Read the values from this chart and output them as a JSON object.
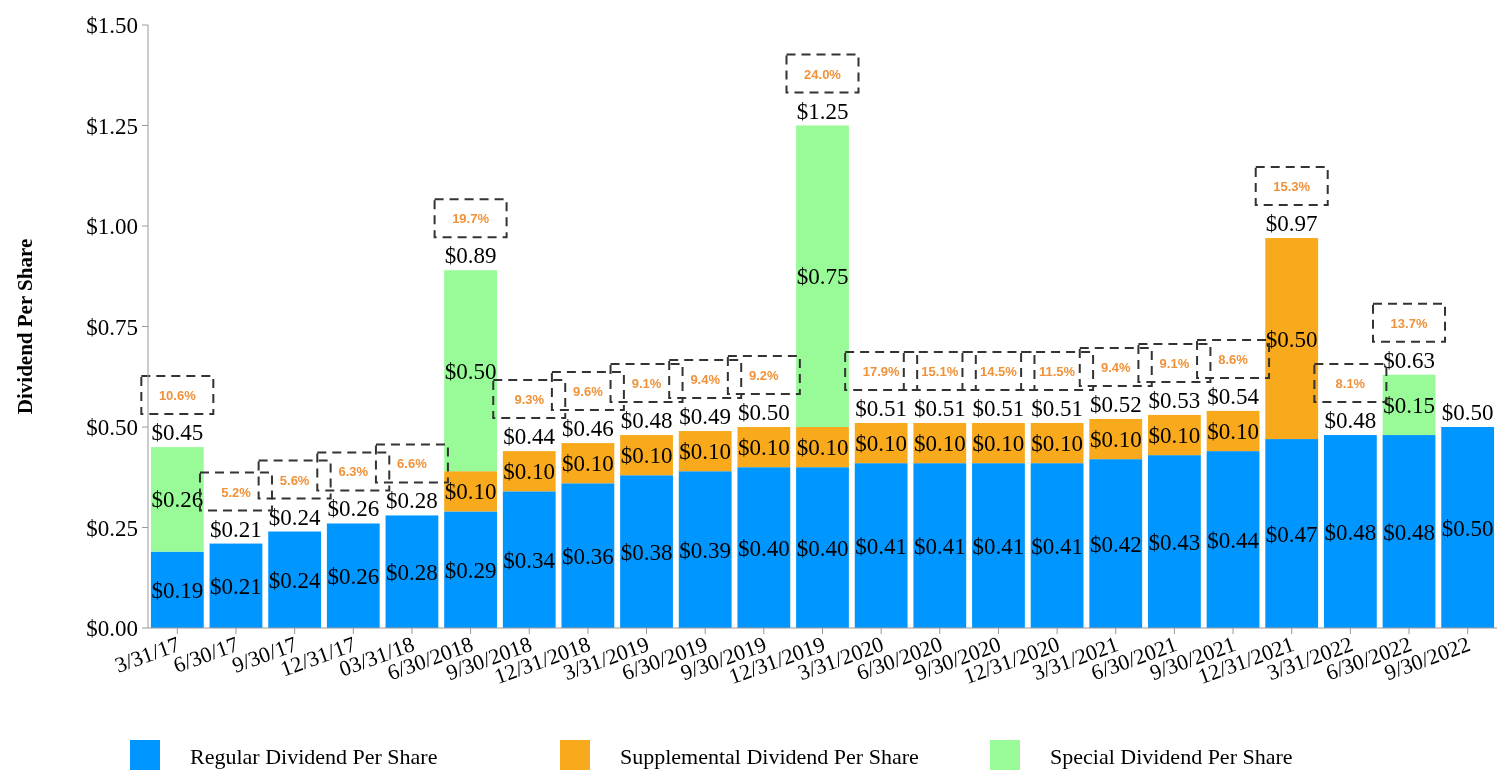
{
  "chart_data": {
    "type": "bar",
    "stacked": true,
    "ylabel": "Dividend Per Share",
    "legend": "bottom",
    "grid": false,
    "categories": [
      "3/31/17",
      "6/30/17",
      "9/30/17",
      "12/31/17",
      "03/31/18",
      "6/30/2018",
      "9/30/2018",
      "12/31/2018",
      "3/31/2019",
      "6/30/2019",
      "9/30/2019",
      "12/31/2019",
      "3/31/2020",
      "6/30/2020",
      "9/30/2020",
      "12/31/2020",
      "3/31/2021",
      "6/30/2021",
      "9/30/2021",
      "12/31/2021",
      "3/31/2022",
      "6/30/2022",
      "9/30/2022"
    ],
    "ylim": [
      0,
      1.5
    ],
    "yticks": [
      {
        "value": 0,
        "label": "$0.00"
      },
      {
        "value": 0.25,
        "label": "$0.25"
      },
      {
        "value": 0.5,
        "label": "$0.50"
      },
      {
        "value": 0.75,
        "label": "$0.75"
      },
      {
        "value": 1,
        "label": "$1.00"
      },
      {
        "value": 1.25,
        "label": "$1.25"
      },
      {
        "value": 1.5,
        "label": "$1.50"
      }
    ],
    "series": [
      {
        "name": "Regular Dividend Per Share",
        "color": "#0096ff",
        "values": [
          0.19,
          0.21,
          0.24,
          0.26,
          0.28,
          0.29,
          0.34,
          0.36,
          0.38,
          0.39,
          0.4,
          0.4,
          0.41,
          0.41,
          0.41,
          0.41,
          0.42,
          0.43,
          0.44,
          0.47,
          0.48,
          0.48,
          0.5
        ],
        "value_labels": [
          "$0.19",
          "$0.21",
          "$0.24",
          "$0.26",
          "$0.28",
          "$0.29",
          "$0.34",
          "$0.36",
          "$0.38",
          "$0.39",
          "$0.40",
          "$0.40",
          "$0.41",
          "$0.41",
          "$0.41",
          "$0.41",
          "$0.42",
          "$0.43",
          "$0.44",
          "$0.47",
          "$0.48",
          "$0.48",
          "$0.50"
        ]
      },
      {
        "name": "Supplemental Dividend Per Share",
        "color": "#f8a91c",
        "values": [
          null,
          null,
          null,
          null,
          null,
          0.1,
          0.1,
          0.1,
          0.1,
          0.1,
          0.1,
          0.1,
          0.1,
          0.1,
          0.1,
          0.1,
          0.1,
          0.1,
          0.1,
          0.5,
          null,
          null,
          null
        ],
        "value_labels": [
          null,
          null,
          null,
          null,
          null,
          "$0.10",
          "$0.10",
          "$0.10",
          "$0.10",
          "$0.10",
          "$0.10",
          "$0.10",
          "$0.10",
          "$0.10",
          "$0.10",
          "$0.10",
          "$0.10",
          "$0.10",
          "$0.10",
          "$0.50",
          null,
          null,
          null
        ]
      },
      {
        "name": "Special Dividend Per Share",
        "color": "#98fb98",
        "values": [
          0.26,
          null,
          null,
          null,
          null,
          0.5,
          null,
          null,
          null,
          null,
          null,
          0.75,
          null,
          null,
          null,
          null,
          null,
          null,
          null,
          null,
          null,
          0.15,
          null
        ],
        "value_labels": [
          "$0.26",
          null,
          null,
          null,
          null,
          "$0.50",
          null,
          null,
          null,
          null,
          null,
          "$0.75",
          null,
          null,
          null,
          null,
          null,
          null,
          null,
          null,
          null,
          "$0.15",
          null
        ]
      }
    ],
    "totals": [
      "$0.45",
      "$0.21",
      "$0.24",
      "$0.26",
      "$0.28",
      "$0.89",
      "$0.44",
      "$0.46",
      "$0.48",
      "$0.49",
      "$0.50",
      "$1.25",
      "$0.51",
      "$0.51",
      "$0.51",
      "$0.51",
      "$0.52",
      "$0.53",
      "$0.54",
      "$0.97",
      "$0.48",
      "$0.63",
      "$0.50"
    ],
    "annotations": [
      "10.6%",
      "5.2%",
      "5.6%",
      "6.3%",
      "6.6%",
      "19.7%",
      "9.3%",
      "9.6%",
      "9.1%",
      "9.4%",
      "9.2%",
      "24.0%",
      "17.9%",
      "15.1%",
      "14.5%",
      "11.5%",
      "9.4%",
      "9.1%",
      "8.6%",
      "15.3%",
      "8.1%",
      "13.7%"
    ]
  }
}
